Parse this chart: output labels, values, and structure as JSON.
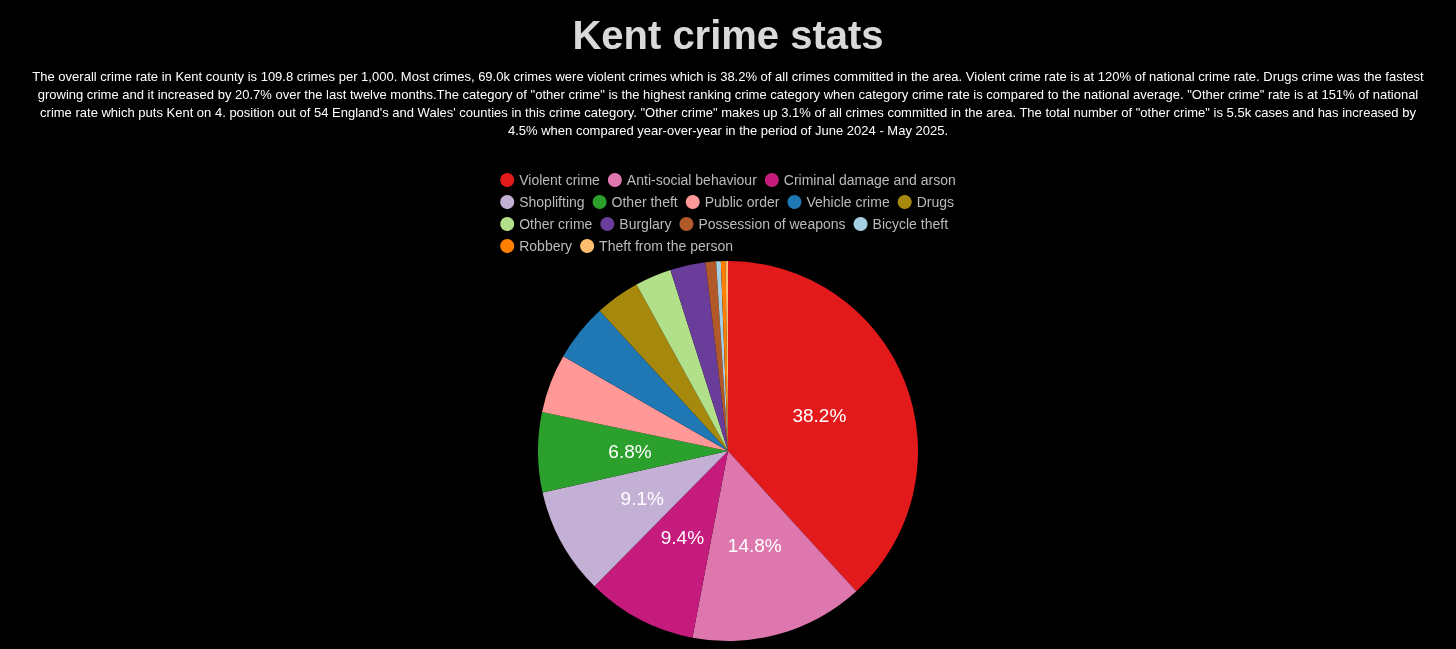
{
  "chart_data": {
    "type": "pie",
    "title": "Kent crime stats",
    "subtitle": "The overall crime rate in Kent county is 109.8 crimes per 1,000. Most crimes, 69.0k crimes were violent crimes which is 38.2% of all crimes committed in the area. Violent crime rate is at 120% of national crime rate. Drugs crime was the fastest growing crime and it increased by 20.7% over the last twelve months.The category of \"other crime\" is the highest ranking crime category when category crime rate is compared to the national average. \"Other crime\" rate is at 151% of national crime rate which puts Kent on 4. position out of 54 England's and Wales' counties in this crime category. \"Other crime\" makes up 3.1% of all crimes committed in the area. The total number of \"other crime\" is 5.5k cases and has increased by 4.5% when compared year-over-year in the period of June 2024 - May 2025.",
    "categories": [
      "Violent crime",
      "Anti-social behaviour",
      "Criminal damage and arson",
      "Shoplifting",
      "Other theft",
      "Public order",
      "Vehicle crime",
      "Drugs",
      "Other crime",
      "Burglary",
      "Possession of weapons",
      "Bicycle theft",
      "Robbery",
      "Theft from the person"
    ],
    "values": [
      38.2,
      14.8,
      9.4,
      9.1,
      6.8,
      5.0,
      4.9,
      3.8,
      3.1,
      3.0,
      0.9,
      0.4,
      0.4,
      0.2
    ],
    "value_labels": [
      "38.2%",
      "14.8%",
      "9.4%",
      "9.1%",
      "6.8%",
      null,
      null,
      null,
      null,
      null,
      null,
      null,
      null,
      null
    ],
    "colors": [
      "#e31a1c",
      "#de77ae",
      "#c51b7d",
      "#c5b0d5",
      "#2ca02c",
      "#ff9896",
      "#1f77b4",
      "#a6880c",
      "#b2df8a",
      "#6a3d9a",
      "#b15928",
      "#a6cee3",
      "#ff7f00",
      "#fdbf6f"
    ],
    "legend": "top"
  }
}
